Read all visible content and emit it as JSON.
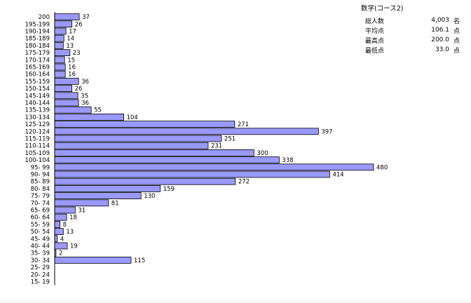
{
  "chart_data": {
    "type": "bar",
    "orientation": "horizontal",
    "categories": [
      "200",
      "195-199",
      "190-194",
      "185-189",
      "180-184",
      "175-179",
      "170-174",
      "165-169",
      "160-164",
      "155-159",
      "150-154",
      "145-149",
      "140-144",
      "135-139",
      "130-134",
      "125-129",
      "120-124",
      "115-119",
      "110-114",
      "105-109",
      "100-104",
      "95- 99",
      "90- 94",
      "85- 89",
      "80- 84",
      "75- 79",
      "70- 74",
      "65- 69",
      "60- 64",
      "55- 59",
      "50- 54",
      "45- 49",
      "40- 44",
      "35- 39",
      "30- 34",
      "25- 29",
      "20- 24",
      "15- 19"
    ],
    "values": [
      37,
      26,
      17,
      14,
      13,
      23,
      15,
      16,
      16,
      36,
      26,
      35,
      36,
      55,
      104,
      271,
      397,
      251,
      231,
      300,
      338,
      480,
      414,
      272,
      159,
      130,
      81,
      31,
      18,
      8,
      13,
      4,
      19,
      2,
      115,
      null,
      null,
      null
    ],
    "value_labels": [
      "37",
      "26",
      "17",
      "14",
      "13",
      "23",
      "15",
      "16",
      "16",
      "36",
      "26",
      "35",
      "36",
      "55",
      "104",
      "271",
      "397",
      "251",
      "231",
      "300",
      "338",
      "480",
      "414",
      "272",
      "159",
      "130",
      "81",
      "31",
      "18",
      "8",
      "13",
      "4",
      "19",
      "2",
      "115",
      "",
      "",
      ""
    ],
    "xlim": [
      0,
      500
    ],
    "grid": false,
    "bar_color": "#9999ff",
    "bar_border_color": "#000000"
  },
  "stats": {
    "title": "数学(コース2)",
    "rows": [
      {
        "label": "総人数",
        "value": "4,003",
        "unit": "名"
      },
      {
        "label": "平均点",
        "value": "106.1",
        "unit": "点"
      },
      {
        "label": "最高点",
        "value": "200.0",
        "unit": "点"
      },
      {
        "label": "最低点",
        "value": "33.0",
        "unit": "点"
      }
    ]
  }
}
